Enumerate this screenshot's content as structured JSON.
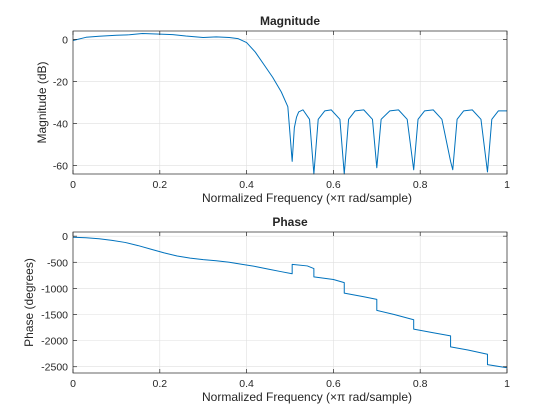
{
  "chart_data": [
    {
      "type": "line",
      "title": "Magnitude",
      "xlabel": "Normalized  Frequency    (×π  rad/sample)",
      "ylabel": "Magnitude (dB)",
      "xlim": [
        0,
        1
      ],
      "ylim": [
        -64,
        4
      ],
      "grid": true,
      "color": "#0072BD",
      "xticks": [
        "0",
        "0.2",
        "0.4",
        "0.6",
        "0.8",
        "1"
      ],
      "xtick_values": [
        0,
        0.2,
        0.4,
        0.6,
        0.8,
        1
      ],
      "yticks": [
        "0",
        "-20",
        "-40",
        "-60"
      ],
      "ytick_values": [
        0,
        -20,
        -40,
        -60
      ],
      "series": [
        {
          "x": [
            0,
            0.03,
            0.06,
            0.1,
            0.13,
            0.16,
            0.2,
            0.23,
            0.26,
            0.3,
            0.33,
            0.36,
            0.38,
            0.4,
            0.42,
            0.44,
            0.46,
            0.48,
            0.495,
            0.505,
            0.51,
            0.515,
            0.52,
            0.53,
            0.545,
            0.555,
            0.565,
            0.58,
            0.595,
            0.615,
            0.625,
            0.635,
            0.65,
            0.67,
            0.69,
            0.7,
            0.71,
            0.73,
            0.75,
            0.77,
            0.785,
            0.795,
            0.81,
            0.83,
            0.85,
            0.87,
            0.875,
            0.885,
            0.9,
            0.92,
            0.94,
            0.955,
            0.965,
            0.98,
            1
          ],
          "y": [
            -0.5,
            1,
            1.5,
            2,
            2.2,
            2.8,
            2.5,
            2.3,
            1.6,
            0.9,
            1.2,
            0.9,
            0.4,
            -1.5,
            -6,
            -12,
            -18,
            -25,
            -32,
            -58,
            -42,
            -37,
            -34.5,
            -33.5,
            -38,
            -64,
            -38,
            -34,
            -33.5,
            -38,
            -64,
            -38,
            -34,
            -33.5,
            -38,
            -61,
            -38,
            -34,
            -33.5,
            -38,
            -62,
            -38,
            -34,
            -33.5,
            -38,
            -58,
            -62,
            -38,
            -34,
            -33.5,
            -38,
            -63,
            -38,
            -34,
            -34
          ]
        }
      ]
    },
    {
      "type": "line",
      "title": "Phase",
      "xlabel": "Normalized  Frequency    (×π  rad/sample)",
      "ylabel": "Phase (degrees)",
      "xlim": [
        0,
        1
      ],
      "ylim": [
        -2620,
        80
      ],
      "grid": true,
      "color": "#0072BD",
      "xticks": [
        "0",
        "0.2",
        "0.4",
        "0.6",
        "0.8",
        "1"
      ],
      "xtick_values": [
        0,
        0.2,
        0.4,
        0.6,
        0.8,
        1
      ],
      "yticks": [
        "0",
        "-500",
        "-1000",
        "-1500",
        "-2000",
        "-2500"
      ],
      "ytick_values": [
        0,
        -500,
        -1000,
        -1500,
        -2000,
        -2500
      ],
      "series": [
        {
          "x": [
            0,
            0.03,
            0.06,
            0.09,
            0.12,
            0.15,
            0.18,
            0.21,
            0.24,
            0.27,
            0.3,
            0.33,
            0.36,
            0.39,
            0.42,
            0.45,
            0.48,
            0.505,
            0.505,
            0.54,
            0.555,
            0.555,
            0.6,
            0.625,
            0.625,
            0.67,
            0.7,
            0.7,
            0.74,
            0.785,
            0.785,
            0.83,
            0.87,
            0.87,
            0.91,
            0.955,
            0.955,
            1
          ],
          "y": [
            -20,
            -30,
            -50,
            -80,
            -120,
            -180,
            -250,
            -320,
            -380,
            -420,
            -450,
            -470,
            -500,
            -540,
            -580,
            -630,
            -680,
            -720,
            -540,
            -570,
            -620,
            -780,
            -830,
            -890,
            -1090,
            -1160,
            -1210,
            -1420,
            -1500,
            -1600,
            -1780,
            -1850,
            -1910,
            -2120,
            -2180,
            -2260,
            -2460,
            -2520
          ]
        }
      ]
    }
  ]
}
